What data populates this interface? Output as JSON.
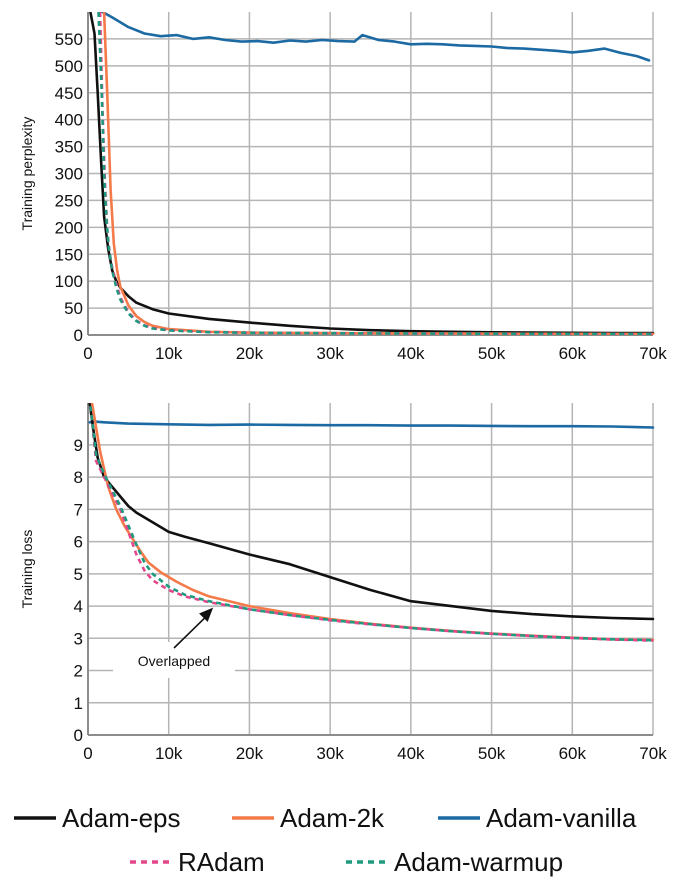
{
  "colors": {
    "Adam-eps": "#111111",
    "Adam-2k": "#f47a4a",
    "Adam-vanilla": "#1c6aa3",
    "RAdam": "#e4468c",
    "Adam-warmup": "#1f9a7f",
    "grid": "#b5b5b5",
    "axis": "#8c8c8c"
  },
  "legend": {
    "items": [
      {
        "label": "Adam-eps",
        "style": "solid",
        "color_key": "Adam-eps"
      },
      {
        "label": "Adam-2k",
        "style": "solid",
        "color_key": "Adam-2k"
      },
      {
        "label": "Adam-vanilla",
        "style": "solid",
        "color_key": "Adam-vanilla"
      },
      {
        "label": "RAdam",
        "style": "dashed",
        "color_key": "RAdam"
      },
      {
        "label": "Adam-warmup",
        "style": "dashed",
        "color_key": "Adam-warmup"
      }
    ]
  },
  "chart_data": [
    {
      "type": "line",
      "ylabel": "Training perplexity",
      "xlabel": "",
      "xlim": [
        0,
        70000
      ],
      "ylim": [
        0,
        600
      ],
      "x_ticks": [
        0,
        10000,
        20000,
        30000,
        40000,
        50000,
        60000,
        70000
      ],
      "x_tick_labels": [
        "0",
        "10k",
        "20k",
        "30k",
        "40k",
        "50k",
        "60k",
        "70k"
      ],
      "y_ticks": [
        0,
        50,
        100,
        150,
        200,
        250,
        300,
        350,
        400,
        450,
        500,
        550
      ],
      "y_tick_labels": [
        "0",
        "50",
        "100",
        "150",
        "200",
        "250",
        "300",
        "350",
        "400",
        "450",
        "500",
        "550"
      ],
      "grid": true,
      "series": [
        {
          "name": "Adam-vanilla",
          "style": "solid",
          "x": [
            1800,
            3000,
            5000,
            7000,
            9000,
            11000,
            13000,
            15000,
            17000,
            19000,
            21000,
            23000,
            25000,
            27000,
            29000,
            31000,
            33000,
            34000,
            36000,
            38000,
            40000,
            42000,
            44000,
            46000,
            48000,
            50000,
            52000,
            54000,
            56000,
            58000,
            60000,
            62000,
            64000,
            66000,
            68000,
            69500
          ],
          "y": [
            600,
            590,
            572,
            560,
            555,
            557,
            550,
            553,
            548,
            545,
            546,
            543,
            547,
            545,
            548,
            546,
            545,
            557,
            548,
            545,
            540,
            541,
            540,
            538,
            537,
            536,
            533,
            532,
            530,
            528,
            525,
            528,
            532,
            524,
            518,
            510
          ]
        },
        {
          "name": "Adam-eps",
          "style": "solid",
          "x": [
            300,
            800,
            1200,
            1600,
            2000,
            2500,
            3000,
            3500,
            4000,
            5000,
            6000,
            8000,
            10000,
            15000,
            20000,
            25000,
            30000,
            35000,
            40000,
            45000,
            50000,
            55000,
            60000,
            65000,
            70000
          ],
          "y": [
            600,
            560,
            450,
            330,
            220,
            160,
            120,
            100,
            88,
            72,
            60,
            48,
            40,
            30,
            23,
            17,
            12,
            9,
            7,
            6,
            5,
            4.5,
            4,
            3.8,
            3.5
          ]
        },
        {
          "name": "Adam-2k",
          "style": "solid",
          "x": [
            2000,
            2400,
            2800,
            3200,
            3600,
            4000,
            5000,
            6000,
            7000,
            8000,
            10000,
            15000,
            20000,
            30000,
            40000,
            50000,
            60000,
            70000
          ],
          "y": [
            600,
            440,
            270,
            170,
            120,
            90,
            55,
            35,
            24,
            17,
            11,
            6,
            4.5,
            3.5,
            3,
            2.6,
            2.3,
            2.1
          ]
        },
        {
          "name": "RAdam",
          "style": "dashed",
          "x": [
            1500,
            1800,
            2100,
            2400,
            2700,
            3000,
            3500,
            4000,
            5000,
            6000,
            7000,
            8000,
            10000,
            15000,
            20000,
            30000,
            40000,
            50000,
            60000,
            70000
          ],
          "y": [
            600,
            420,
            280,
            190,
            150,
            125,
            95,
            70,
            42,
            27,
            18,
            13,
            9,
            5.5,
            4.2,
            3.4,
            2.9,
            2.5,
            2.2,
            2
          ]
        },
        {
          "name": "Adam-warmup",
          "style": "dashed",
          "x": [
            1300,
            1700,
            2000,
            2300,
            2600,
            3000,
            3500,
            4000,
            5000,
            6000,
            7000,
            8000,
            10000,
            15000,
            20000,
            30000,
            40000,
            50000,
            60000,
            70000
          ],
          "y": [
            600,
            450,
            300,
            210,
            160,
            120,
            88,
            66,
            40,
            26,
            17,
            12,
            8.5,
            5.2,
            4,
            3.3,
            2.8,
            2.4,
            2.1,
            1.9
          ]
        }
      ]
    },
    {
      "type": "line",
      "ylabel": "Training loss",
      "xlabel": "",
      "xlim": [
        0,
        70000
      ],
      "ylim": [
        0,
        10.3
      ],
      "x_ticks": [
        0,
        10000,
        20000,
        30000,
        40000,
        50000,
        60000,
        70000
      ],
      "x_tick_labels": [
        "0",
        "10k",
        "20k",
        "30k",
        "40k",
        "50k",
        "60k",
        "70k"
      ],
      "y_ticks": [
        0,
        1,
        2,
        3,
        4,
        5,
        6,
        7,
        8,
        9
      ],
      "y_tick_labels": [
        "0",
        "1",
        "2",
        "3",
        "4",
        "5",
        "6",
        "7",
        "8",
        "9"
      ],
      "grid": true,
      "annotations": [
        {
          "text": "Overlapped",
          "arrow_to_x": 15500,
          "arrow_to_y": 3.95
        }
      ],
      "series": [
        {
          "name": "Adam-vanilla",
          "style": "solid",
          "x": [
            200,
            1000,
            2000,
            5000,
            10000,
            15000,
            20000,
            25000,
            30000,
            35000,
            40000,
            45000,
            50000,
            55000,
            60000,
            65000,
            70000
          ],
          "y": [
            9.7,
            9.72,
            9.7,
            9.66,
            9.64,
            9.62,
            9.63,
            9.62,
            9.61,
            9.61,
            9.6,
            9.6,
            9.59,
            9.58,
            9.58,
            9.57,
            9.54
          ]
        },
        {
          "name": "Adam-eps",
          "style": "solid",
          "x": [
            200,
            700,
            1200,
            2000,
            3000,
            4000,
            5000,
            6000,
            8000,
            10000,
            12000,
            15000,
            20000,
            25000,
            30000,
            35000,
            40000,
            45000,
            50000,
            55000,
            60000,
            65000,
            70000
          ],
          "y": [
            10.3,
            9.4,
            8.6,
            8.0,
            7.7,
            7.4,
            7.1,
            6.9,
            6.6,
            6.3,
            6.15,
            5.95,
            5.6,
            5.3,
            4.9,
            4.5,
            4.15,
            4.0,
            3.85,
            3.75,
            3.68,
            3.63,
            3.6
          ]
        },
        {
          "name": "Adam-2k",
          "style": "solid",
          "x": [
            500,
            1500,
            2500,
            3500,
            4500,
            5500,
            6500,
            7500,
            9000,
            11000,
            13000,
            15000,
            20000,
            25000,
            30000,
            35000,
            40000,
            45000,
            50000,
            55000,
            60000,
            65000,
            70000
          ],
          "y": [
            10.3,
            8.8,
            7.7,
            7.0,
            6.5,
            6.1,
            5.7,
            5.35,
            5.05,
            4.75,
            4.5,
            4.3,
            4.0,
            3.78,
            3.6,
            3.45,
            3.33,
            3.23,
            3.15,
            3.08,
            3.02,
            2.97,
            2.95
          ]
        },
        {
          "name": "RAdam",
          "style": "dashed",
          "x": [
            300,
            1000,
            2000,
            3000,
            4000,
            5000,
            6000,
            7000,
            8000,
            10000,
            12000,
            15000,
            20000,
            25000,
            30000,
            35000,
            40000,
            45000,
            50000,
            55000,
            60000,
            65000,
            70000
          ],
          "y": [
            10.2,
            8.5,
            8.0,
            7.5,
            7.0,
            6.3,
            5.6,
            5.1,
            4.8,
            4.5,
            4.3,
            4.12,
            3.9,
            3.72,
            3.56,
            3.43,
            3.32,
            3.22,
            3.14,
            3.07,
            3.01,
            2.96,
            2.93
          ]
        },
        {
          "name": "Adam-warmup",
          "style": "dashed",
          "x": [
            300,
            1000,
            2000,
            3000,
            4000,
            5000,
            6000,
            7000,
            8000,
            10000,
            12000,
            15000,
            20000,
            25000,
            30000,
            35000,
            40000,
            45000,
            50000,
            55000,
            60000,
            65000,
            70000
          ],
          "y": [
            10.2,
            8.7,
            8.1,
            7.6,
            7.1,
            6.5,
            5.9,
            5.35,
            5.0,
            4.6,
            4.35,
            4.15,
            3.9,
            3.72,
            3.57,
            3.44,
            3.32,
            3.22,
            3.14,
            3.07,
            3.01,
            2.97,
            2.94
          ]
        }
      ]
    }
  ]
}
